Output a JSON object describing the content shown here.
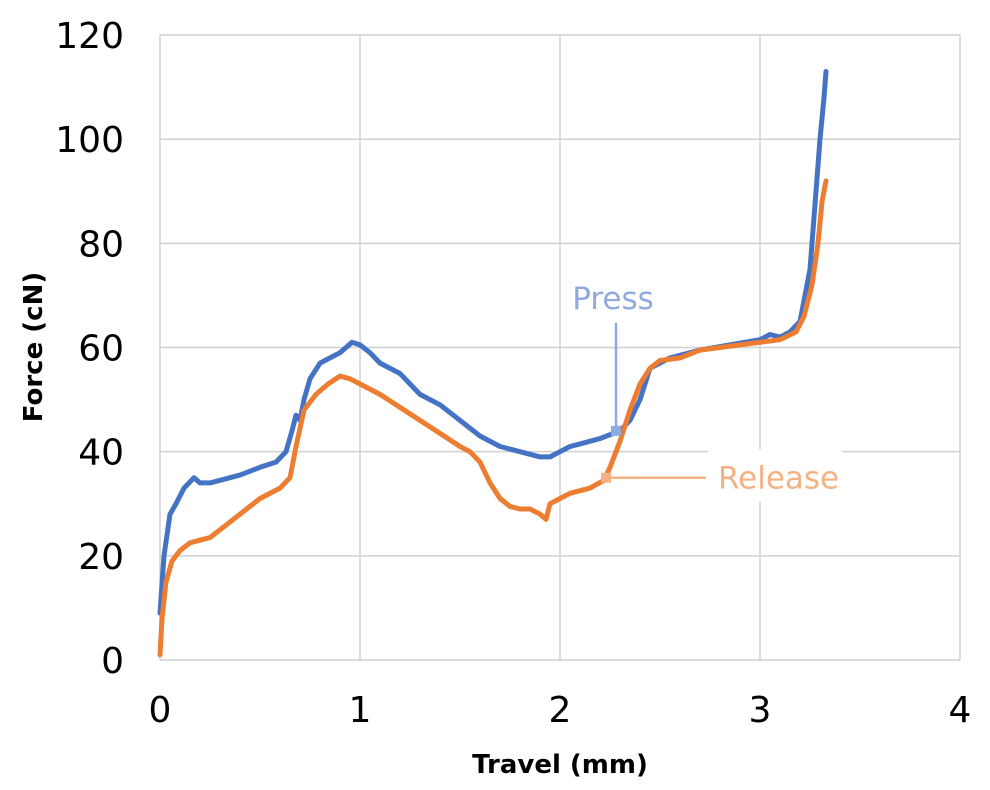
{
  "chart_data": {
    "type": "line",
    "title": "",
    "xlabel": "Travel (mm)",
    "ylabel": "Force (cN)",
    "xlim": [
      0,
      4
    ],
    "ylim": [
      0,
      120
    ],
    "xticks": [
      0,
      1,
      2,
      3,
      4
    ],
    "yticks": [
      0,
      20,
      40,
      60,
      80,
      100,
      120
    ],
    "grid": true,
    "legend": "none",
    "series": [
      {
        "name": "Press",
        "color": "#4472C4",
        "label_color": "#8FAADC",
        "x": [
          0,
          0.02,
          0.05,
          0.08,
          0.12,
          0.17,
          0.2,
          0.22,
          0.25,
          0.3,
          0.35,
          0.4,
          0.5,
          0.58,
          0.63,
          0.66,
          0.68,
          0.7,
          0.72,
          0.75,
          0.8,
          0.85,
          0.9,
          0.93,
          0.96,
          1.0,
          1.05,
          1.1,
          1.2,
          1.3,
          1.4,
          1.5,
          1.6,
          1.7,
          1.8,
          1.9,
          1.95,
          2.0,
          2.05,
          2.1,
          2.2,
          2.3,
          2.35,
          2.4,
          2.45,
          2.55,
          2.7,
          2.85,
          3.0,
          3.05,
          3.1,
          3.15,
          3.2,
          3.25,
          3.28,
          3.3,
          3.32,
          3.33
        ],
        "y": [
          9,
          20,
          28,
          30,
          33,
          35,
          34,
          34,
          34,
          34.5,
          35,
          35.5,
          37,
          38,
          40,
          44,
          47,
          46,
          50,
          54,
          57,
          58,
          59,
          60,
          61,
          60.5,
          59,
          57,
          55,
          51,
          49,
          46,
          43,
          41,
          40,
          39,
          39,
          40,
          41,
          41.5,
          42.5,
          44,
          46,
          50,
          56,
          58,
          59.5,
          60.5,
          61.5,
          62.5,
          62,
          63,
          65,
          75,
          90,
          100,
          108,
          113
        ]
      },
      {
        "name": "Release",
        "color": "#ED7D31",
        "label_color": "#F4B183",
        "x": [
          0,
          0.01,
          0.03,
          0.06,
          0.1,
          0.15,
          0.2,
          0.25,
          0.3,
          0.4,
          0.5,
          0.6,
          0.65,
          0.68,
          0.72,
          0.78,
          0.84,
          0.9,
          0.95,
          1.0,
          1.1,
          1.2,
          1.3,
          1.4,
          1.5,
          1.55,
          1.6,
          1.65,
          1.7,
          1.75,
          1.8,
          1.85,
          1.9,
          1.93,
          1.95,
          2.0,
          2.05,
          2.1,
          2.15,
          2.22,
          2.25,
          2.3,
          2.35,
          2.4,
          2.45,
          2.5,
          2.6,
          2.7,
          2.8,
          2.9,
          3.0,
          3.1,
          3.18,
          3.22,
          3.26,
          3.29,
          3.31,
          3.33
        ],
        "y": [
          1,
          8,
          15,
          19,
          21,
          22.5,
          23,
          23.5,
          25,
          28,
          31,
          33,
          35,
          41,
          48,
          51,
          53,
          54.5,
          54,
          53,
          51,
          48.5,
          46,
          43.5,
          41,
          40,
          38,
          34,
          31,
          29.5,
          29,
          29,
          28,
          27,
          30,
          31,
          32,
          32.5,
          33,
          34.5,
          37,
          42,
          48,
          53,
          56,
          57.5,
          58,
          59.5,
          60,
          60.5,
          61,
          61.5,
          63,
          66,
          72,
          80,
          88,
          92
        ]
      }
    ],
    "annotations": [
      {
        "text": "Press",
        "series": "Press",
        "x": 2.28,
        "y": 44
      },
      {
        "text": "Release",
        "series": "Release",
        "x": 2.23,
        "y": 35
      }
    ]
  }
}
